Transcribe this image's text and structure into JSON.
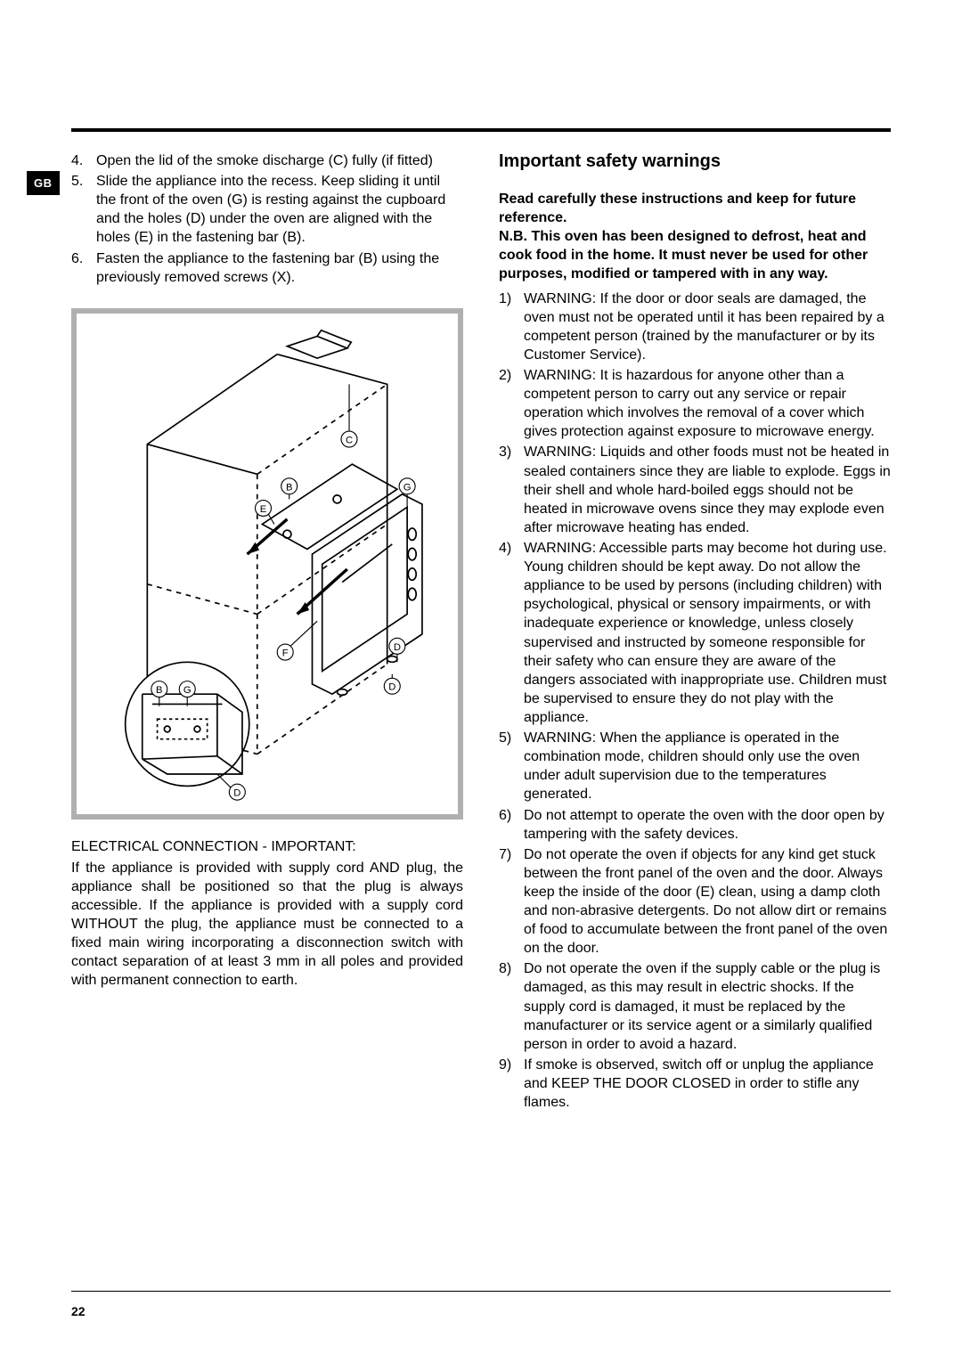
{
  "lang_badge": "GB",
  "page_number": "22",
  "left": {
    "list": [
      {
        "num": "4.",
        "text": "Open the lid of the smoke discharge (C) fully (if fitted)"
      },
      {
        "num": "5.",
        "text": "Slide the appliance into the recess. Keep sliding it until the front of the oven (G) is resting against the cupboard and the holes (D) under the oven are aligned with the holes (E) in the fastening bar (B)."
      },
      {
        "num": "6.",
        "text": "Fasten the appliance to the fastening bar (B) using the previously removed screws (X)."
      }
    ],
    "elec_heading": "ELECTRICAL CONNECTION - IMPORTANT:",
    "elec_body": "If the appliance is provided with supply cord AND plug, the appliance shall be positioned so that the plug is always accessible. If the appliance is provided with a supply cord WITHOUT the plug, the appliance must be connected to a fixed main wiring incorporating a disconnection switch with contact separation of at least 3 mm in all poles and provided with permanent connection to earth.",
    "diagram": {
      "labels": [
        "C",
        "B",
        "E",
        "G",
        "F",
        "D",
        "D",
        "B",
        "G",
        "D"
      ]
    }
  },
  "right": {
    "heading": "Important safety warnings",
    "intro": "Read carefully these instructions and keep for future reference.\nN.B. This oven has been designed to defrost, heat and cook food in the home. It must never be used for other purposes, modified or tampered with in any way.",
    "list": [
      {
        "num": "1)",
        "text": "WARNING: If the door or door seals are damaged, the oven must not be operated until it has been repaired by a competent person (trained by the manufacturer or by its Customer Service)."
      },
      {
        "num": "2)",
        "text": "WARNING: It is hazardous for anyone other than a competent person to carry out any service or repair operation which involves the removal of a cover which gives protection against exposure to microwave energy."
      },
      {
        "num": "3)",
        "text": "WARNING: Liquids and other foods must not be heated in sealed containers since they are liable to explode. Eggs in their shell and whole hard-boiled eggs should not be heated in microwave ovens since they may explode even after microwave heating has ended."
      },
      {
        "num": "4)",
        "text": "WARNING: Accessible parts may become hot during use. Young children should be kept away. Do not allow the appliance to be used by persons (including children) with psychological, physical or sensory impairments, or with inadequate experience or knowledge, unless closely supervised and instructed by someone responsible for their safety who can ensure they are aware of the dangers associated with inappropriate use.  Children must be supervised to ensure they do not play with the appliance."
      },
      {
        "num": "5)",
        "text": "WARNING: When the appliance is operated in the combination mode, children should only use the oven under adult supervision due to the temperatures generated."
      },
      {
        "num": "6)",
        "text": "Do not attempt to operate the oven with the door open by tampering with the safety devices."
      },
      {
        "num": "7)",
        "text": "Do not operate the oven if objects for any kind get stuck between the front panel of the oven and the door.  Always keep the inside of the door (E) clean, using a damp cloth and non-abrasive detergents. Do not allow dirt or remains of food to accumulate between the front panel of the oven on the door."
      },
      {
        "num": "8)",
        "text": "Do not operate the oven if the supply cable or the plug is damaged, as this may result in electric shocks. If the supply cord is damaged, it must be replaced by the manufacturer or its service agent or a similarly qualified person in order to avoid a hazard."
      },
      {
        "num": "9)",
        "text": "If smoke is observed, switch off or unplug the appliance and KEEP THE DOOR CLOSED in order to stifle any flames."
      }
    ]
  }
}
